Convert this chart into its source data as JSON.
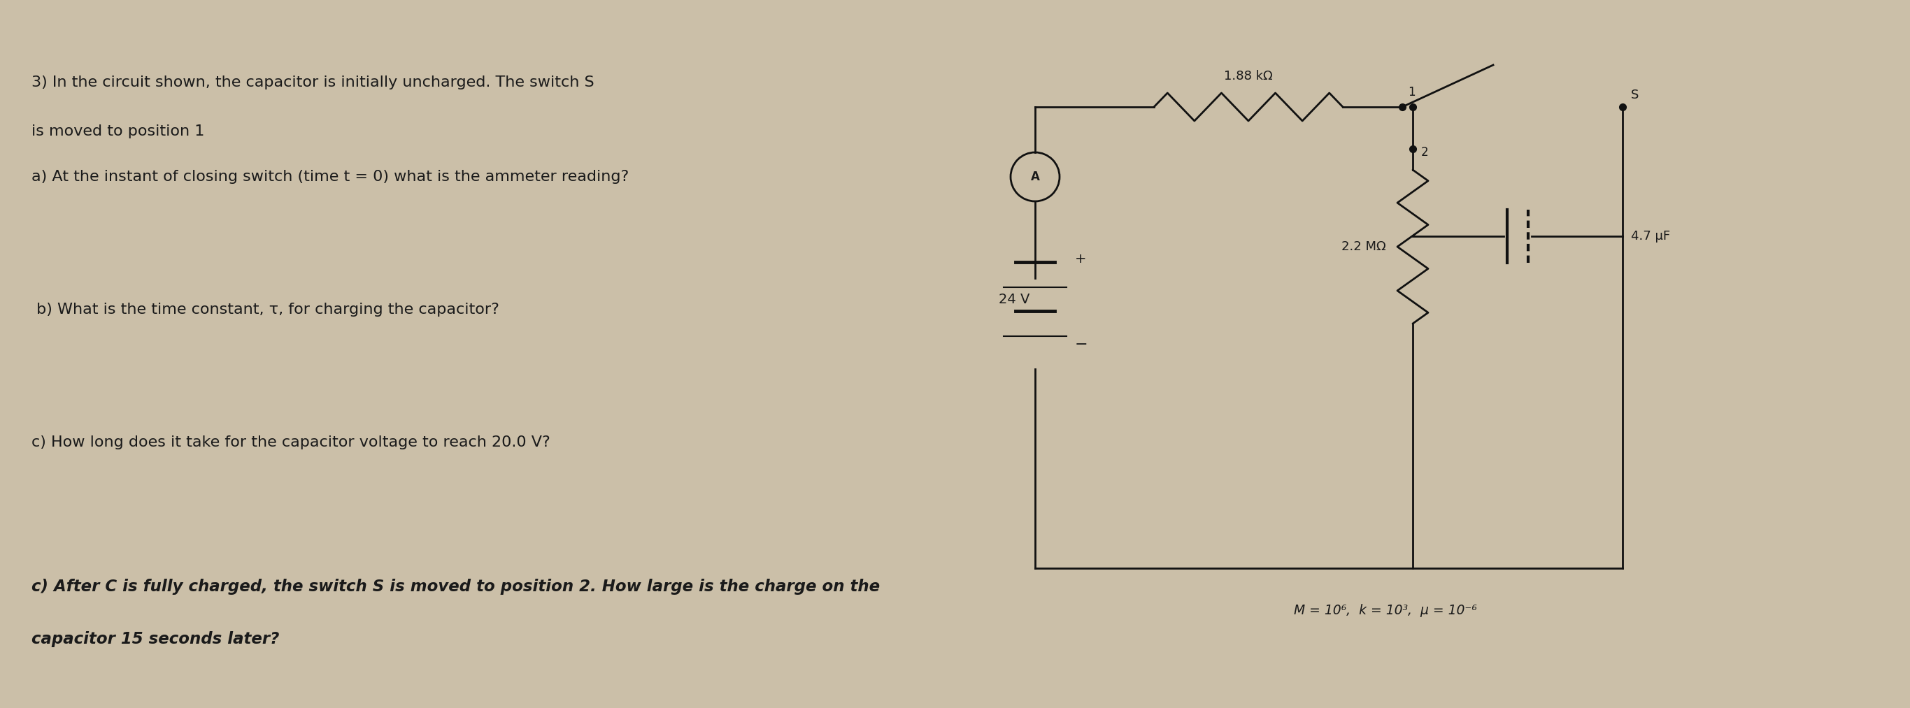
{
  "bg_color": "#cbbfa8",
  "text_color": "#1a1a1a",
  "fig_width": 27.31,
  "fig_height": 10.13,
  "line1": "3) In the circuit shown, the capacitor is initially uncharged. The switch S",
  "line2": "is moved to position 1",
  "line3_a": "a) At the instant of closing switch (time t = 0) what is the ammeter reading?",
  "line3_b": " b) What is the time constant, τ, for charging the capacitor?",
  "line3_c": "c) How long does it take for the capacitor voltage to reach 20.0 V?",
  "line3_d": "c) After C is fully charged, the switch S is moved to position 2. How large is the charge on the",
  "line3_e": "capacitor 15 seconds later?",
  "resistor_label": "1.88 kΩ",
  "resistor2_label": "2.2 MΩ",
  "capacitor_label": "4.7 μF",
  "voltage_label": "24 V",
  "units_label": "M = 10⁶,  k = 10³,  μ = 10⁻⁶",
  "ammeter_label": "A",
  "switch_pos1": "1",
  "switch_pos2": "2",
  "switch_label": "S"
}
